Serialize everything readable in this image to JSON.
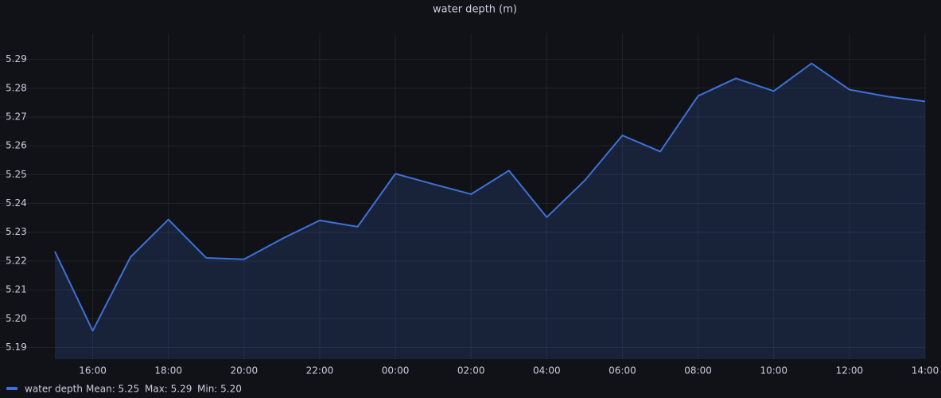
{
  "chart_data": {
    "type": "line",
    "title": "water depth (m)",
    "categories": [
      null,
      "16:00",
      null,
      "18:00",
      null,
      "20:00",
      null,
      "22:00",
      null,
      "00:00",
      null,
      "02:00",
      null,
      "04:00",
      null,
      "06:00",
      null,
      "08:00",
      null,
      "10:00",
      null,
      "12:00",
      null,
      "14:00"
    ],
    "series": [
      {
        "name": "water depth",
        "color": "#3d71d9",
        "fill": true,
        "values": [
          5.2233,
          5.1958,
          5.2214,
          5.2344,
          5.2211,
          5.2206,
          5.2277,
          5.2341,
          5.2319,
          5.2503,
          5.2467,
          5.2432,
          5.2514,
          5.2352,
          5.2479,
          5.2636,
          5.258,
          5.2773,
          5.2834,
          5.279,
          5.2886,
          5.2795,
          5.2771,
          5.2754
        ]
      }
    ],
    "ylim": [
      5.186,
      5.299
    ],
    "yticks": [
      5.19,
      {
        "value": 5.2,
        "label": "5.20"
      },
      5.21,
      5.22,
      5.23,
      5.24,
      5.25,
      5.26,
      5.27,
      5.28,
      5.29
    ],
    "grid": true,
    "legend_position": "bottom-left",
    "legend_stats": [
      "Mean: 5.25",
      "Max: 5.29",
      "Min: 5.20"
    ]
  }
}
